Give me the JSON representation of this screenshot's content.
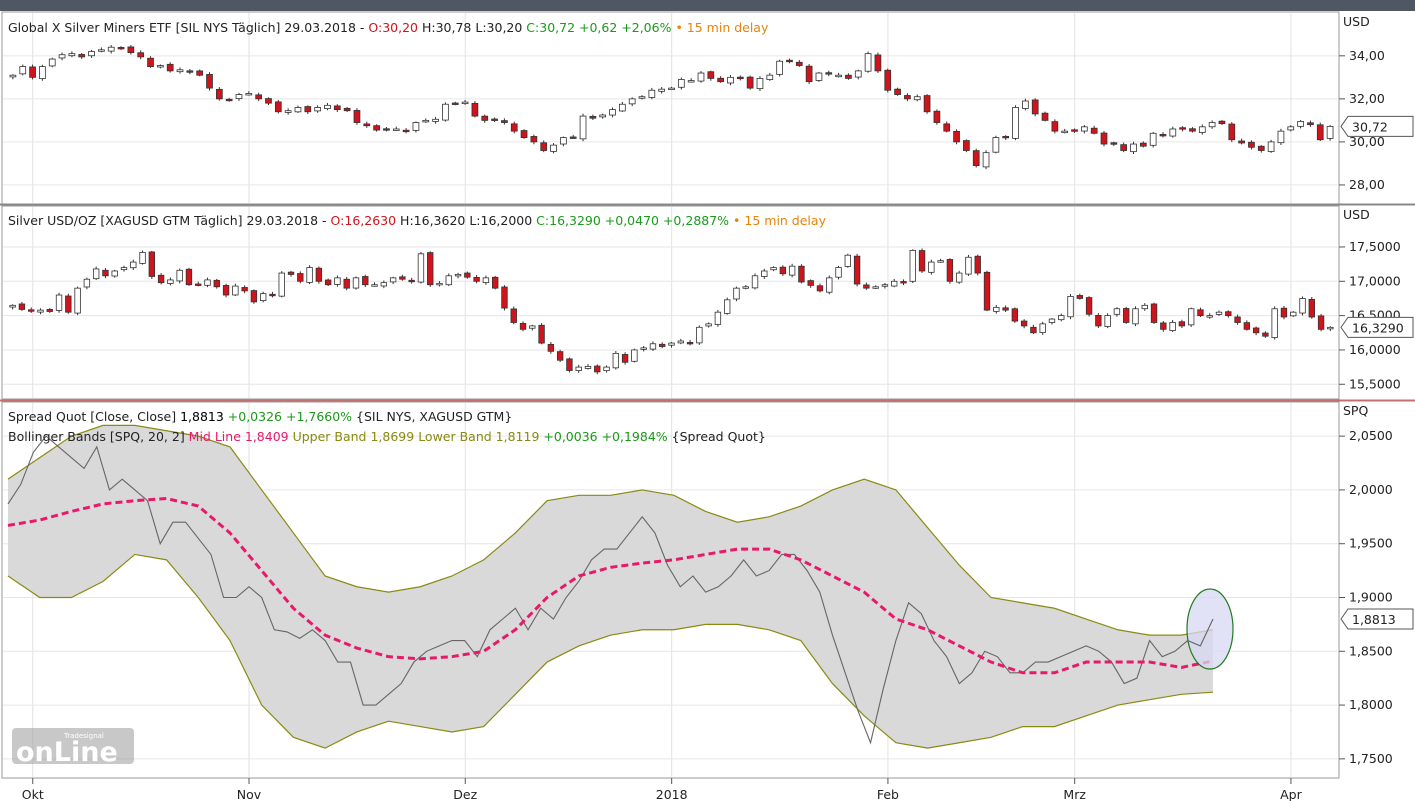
{
  "colors": {
    "up_candle": "#ffffff",
    "down_candle": "#d0141c",
    "candle_outline": "#333333",
    "positive_text": "#1a9a1a",
    "negative_text": "#d0141c",
    "delay_text": "#e8830a",
    "mid_line": "#e8196b",
    "band_line": "#8a8a12",
    "band_fill": "#d9d9d9",
    "spread_line": "#666666",
    "highlight_fill": "#d8d8f4",
    "highlight_stroke": "#1f7a1f",
    "topbar": "#4f5763"
  },
  "x_axis": {
    "ticks": [
      "Okt",
      "Nov",
      "Dez",
      "2018",
      "Feb",
      "Mrz",
      "Apr"
    ]
  },
  "panels": {
    "sil": {
      "title_plain": "Global X Silver Miners ETF [SIL NYS Täglich] 29.03.2018 - ",
      "open": "O:30,20",
      "hlc": " H:30,78 L:30,20 ",
      "close_change": "C:30,72 +0,62 +2,06%",
      "delay": " • 15 min delay",
      "unit": "USD",
      "ticks": [
        "34,00",
        "32,00",
        "30,00",
        "28,00"
      ],
      "last": "30,72"
    },
    "silver": {
      "title_plain": "Silver USD/OZ [XAGUSD GTM Täglich] 29.03.2018 - ",
      "open": "O:16,2630",
      "hlc": " H:16,3620 L:16,2000 ",
      "close_change": "C:16,3290 +0,0470 +0,2887%",
      "delay": " • 15 min delay",
      "unit": "USD",
      "ticks": [
        "17,5000",
        "17,0000",
        "16,5000",
        "16,0000",
        "15,5000"
      ],
      "last": "16,3290"
    },
    "spread": {
      "line1_name": "Spread Quot [Close, Close] ",
      "line1_value": "1,8813",
      "line1_change": " +0,0326 +1,7660%",
      "line1_sources": " {SIL NYS, XAGUSD GTM}",
      "line2_name": "Bollinger Bands [SPQ, 20, 2] ",
      "line2_mid": "Mid Line 1,8409",
      "line2_upper": " Upper Band 1,8699",
      "line2_lower": " Lower Band 1,8119",
      "line2_change": " +0,0036 +0,1984%",
      "line2_source": " {Spread Quot}",
      "unit": "SPQ",
      "ticks": [
        "2,0500",
        "2,0000",
        "1,9500",
        "1,9000",
        "1,8500",
        "1,8000",
        "1,7500"
      ],
      "last": "1,8813"
    }
  },
  "logo": {
    "main": "onLine",
    "small": "Tradesignal"
  },
  "chart_data": [
    {
      "type": "candlestick",
      "title": "Global X Silver Miners ETF [SIL NYS Täglich] 29.03.2018",
      "ylabel": "USD",
      "ylim": [
        27.3,
        35.2
      ],
      "x_ticks": [
        "Okt",
        "Nov",
        "Dez",
        "2018",
        "Feb",
        "Mrz",
        "Apr"
      ],
      "series": [
        {
          "values": [
            33.1,
            33.5,
            33.0,
            33.5,
            33.85,
            34.05,
            34.1,
            33.95,
            34.2,
            34.28,
            34.4,
            34.35,
            34.15,
            33.95,
            33.5,
            33.55,
            33.3,
            33.35,
            33.25,
            33.1,
            32.5,
            32.0,
            31.95,
            32.2,
            32.25,
            32.0,
            31.8,
            31.4,
            31.45,
            31.6,
            31.4,
            31.6,
            31.7,
            31.5,
            31.45,
            30.9,
            30.75,
            30.55,
            30.6,
            30.6,
            30.5,
            30.9,
            31.0,
            31.05,
            31.75,
            31.8,
            31.85,
            31.2,
            31.0,
            31.0,
            30.9,
            30.5,
            30.2,
            30.0,
            29.6,
            29.85,
            30.2,
            30.2,
            31.2,
            31.1,
            31.25,
            31.5,
            31.75,
            32.0,
            32.1,
            32.4,
            32.45,
            32.5,
            32.9,
            32.85,
            33.2,
            32.95,
            32.8,
            33.0,
            32.95,
            32.5,
            32.95,
            33.1,
            33.75,
            33.75,
            33.55,
            32.8,
            33.2,
            33.15,
            33.1,
            32.95,
            33.3,
            34.1,
            33.3,
            32.4,
            32.2,
            32.0,
            32.1,
            31.4,
            30.9,
            30.5,
            30.0,
            29.6,
            28.9,
            29.5,
            30.2,
            30.2,
            31.6,
            31.9,
            31.3,
            31.0,
            30.5,
            30.5,
            30.5,
            30.7,
            30.4,
            29.9,
            29.9,
            29.6,
            29.9,
            29.8,
            30.4,
            30.3,
            30.6,
            30.6,
            30.5,
            30.7,
            30.9,
            30.85,
            30.1,
            29.95,
            29.75,
            29.6,
            30.0,
            30.5,
            30.7,
            30.95,
            30.8,
            30.1,
            30.72
          ],
          "note": "daily closes read from candlestick panel, 29.09.2017–29.03.2018"
        }
      ]
    },
    {
      "type": "candlestick",
      "title": "Silver USD/OZ [XAGUSD GTM Täglich] 29.03.2018",
      "ylabel": "USD",
      "ylim": [
        15.3,
        17.82
      ],
      "x_ticks": [
        "Okt",
        "Nov",
        "Dez",
        "2018",
        "Feb",
        "Mrz",
        "Apr"
      ],
      "series": [
        {
          "values": [
            16.65,
            16.59,
            16.57,
            16.58,
            16.56,
            16.8,
            16.55,
            16.9,
            17.03,
            17.18,
            17.08,
            17.15,
            17.2,
            17.28,
            17.42,
            17.07,
            16.98,
            17.02,
            17.16,
            16.95,
            16.96,
            17.02,
            16.92,
            16.8,
            16.93,
            16.86,
            16.7,
            16.82,
            16.8,
            17.12,
            17.1,
            17.0,
            17.2,
            17.0,
            16.95,
            17.05,
            16.9,
            17.05,
            16.95,
            16.95,
            16.98,
            17.05,
            17.03,
            17.0,
            17.4,
            16.95,
            16.97,
            17.08,
            17.1,
            17.06,
            17.0,
            17.05,
            16.9,
            16.61,
            16.4,
            16.3,
            16.35,
            16.1,
            15.98,
            15.85,
            15.7,
            15.75,
            15.76,
            15.68,
            15.75,
            15.95,
            15.82,
            16.0,
            16.03,
            16.09,
            16.05,
            16.1,
            16.13,
            16.1,
            16.33,
            16.38,
            16.55,
            16.73,
            16.9,
            16.92,
            17.08,
            17.15,
            17.2,
            17.11,
            17.22,
            16.99,
            16.94,
            16.86,
            17.05,
            17.2,
            17.38,
            16.96,
            16.9,
            16.92,
            16.95,
            17.0,
            16.98,
            17.45,
            17.15,
            17.28,
            17.3,
            17.0,
            17.12,
            17.35,
            17.12,
            16.58,
            16.62,
            16.58,
            16.42,
            16.35,
            16.25,
            16.38,
            16.45,
            16.5,
            16.78,
            16.75,
            16.52,
            16.35,
            16.5,
            16.6,
            16.4,
            16.6,
            16.65,
            16.4,
            16.3,
            16.4,
            16.35,
            16.6,
            16.5,
            16.5,
            16.55,
            16.5,
            16.4,
            16.3,
            16.25,
            16.2,
            16.6,
            16.48,
            16.55,
            16.75,
            16.48,
            16.3,
            16.329
          ],
          "note": "daily closes read from candlestick panel, 29.09.2017–29.03.2018"
        }
      ]
    },
    {
      "type": "line",
      "title": "Spread Quot [Close, Close] / Bollinger Bands [SPQ, 20, 2]",
      "ylabel": "SPQ",
      "ylim": [
        1.735,
        2.065
      ],
      "x_ticks": [
        "Okt",
        "Nov",
        "Dez",
        "2018",
        "Feb",
        "Mrz",
        "Apr"
      ],
      "series": [
        {
          "name": "Spread Quot",
          "values": [
            1.987,
            2.005,
            2.035,
            2.05,
            2.04,
            2.03,
            2.02,
            2.04,
            2.0,
            2.01,
            2.0,
            1.99,
            1.95,
            1.97,
            1.97,
            1.955,
            1.94,
            1.9,
            1.9,
            1.91,
            1.9,
            1.87,
            1.868,
            1.862,
            1.87,
            1.86,
            1.84,
            1.84,
            1.8,
            1.8,
            1.81,
            1.82,
            1.84,
            1.85,
            1.855,
            1.86,
            1.86,
            1.845,
            1.87,
            1.88,
            1.89,
            1.87,
            1.89,
            1.88,
            1.9,
            1.915,
            1.935,
            1.945,
            1.945,
            1.96,
            1.975,
            1.96,
            1.93,
            1.91,
            1.92,
            1.905,
            1.91,
            1.92,
            1.935,
            1.92,
            1.925,
            1.94,
            1.94,
            1.925,
            1.905,
            1.865,
            1.83,
            1.795,
            1.765,
            1.815,
            1.86,
            1.895,
            1.885,
            1.86,
            1.845,
            1.82,
            1.83,
            1.85,
            1.845,
            1.83,
            1.83,
            1.84,
            1.84,
            1.845,
            1.85,
            1.855,
            1.85,
            1.84,
            1.82,
            1.825,
            1.86,
            1.845,
            1.85,
            1.86,
            1.855,
            1.88
          ],
          "note": "SIL close / XAGUSD close; traced from line, daily, 29.09.2017–29.03.2018"
        },
        {
          "name": "Mid Line",
          "values": [
            1.967,
            1.972,
            1.98,
            1.987,
            1.99,
            1.992,
            1.985,
            1.96,
            1.925,
            1.89,
            1.865,
            1.853,
            1.845,
            1.843,
            1.845,
            1.85,
            1.87,
            1.9,
            1.92,
            1.928,
            1.932,
            1.935,
            1.94,
            1.945,
            1.945,
            1.935,
            1.92,
            1.905,
            1.88,
            1.87,
            1.855,
            1.84,
            1.83,
            1.83,
            1.84,
            1.84,
            1.84,
            1.835,
            1.841
          ],
          "note": "20-period SMA, sampled"
        },
        {
          "name": "Upper Band",
          "values": [
            2.01,
            2.03,
            2.05,
            2.06,
            2.06,
            2.055,
            2.05,
            2.04,
            2.0,
            1.96,
            1.92,
            1.91,
            1.905,
            1.91,
            1.92,
            1.935,
            1.96,
            1.99,
            1.995,
            1.995,
            2.0,
            1.995,
            1.98,
            1.97,
            1.975,
            1.985,
            2.0,
            2.01,
            2.0,
            1.965,
            1.93,
            1.9,
            1.895,
            1.89,
            1.88,
            1.87,
            1.865,
            1.865,
            1.87
          ],
          "note": "Bollinger upper band, sampled"
        },
        {
          "name": "Lower Band",
          "values": [
            1.92,
            1.9,
            1.9,
            1.915,
            1.94,
            1.935,
            1.9,
            1.86,
            1.8,
            1.77,
            1.76,
            1.775,
            1.785,
            1.78,
            1.775,
            1.78,
            1.81,
            1.84,
            1.855,
            1.865,
            1.87,
            1.87,
            1.875,
            1.875,
            1.87,
            1.86,
            1.82,
            1.79,
            1.765,
            1.76,
            1.765,
            1.77,
            1.78,
            1.78,
            1.79,
            1.8,
            1.805,
            1.81,
            1.812
          ],
          "note": "Bollinger lower band, sampled"
        }
      ]
    }
  ]
}
